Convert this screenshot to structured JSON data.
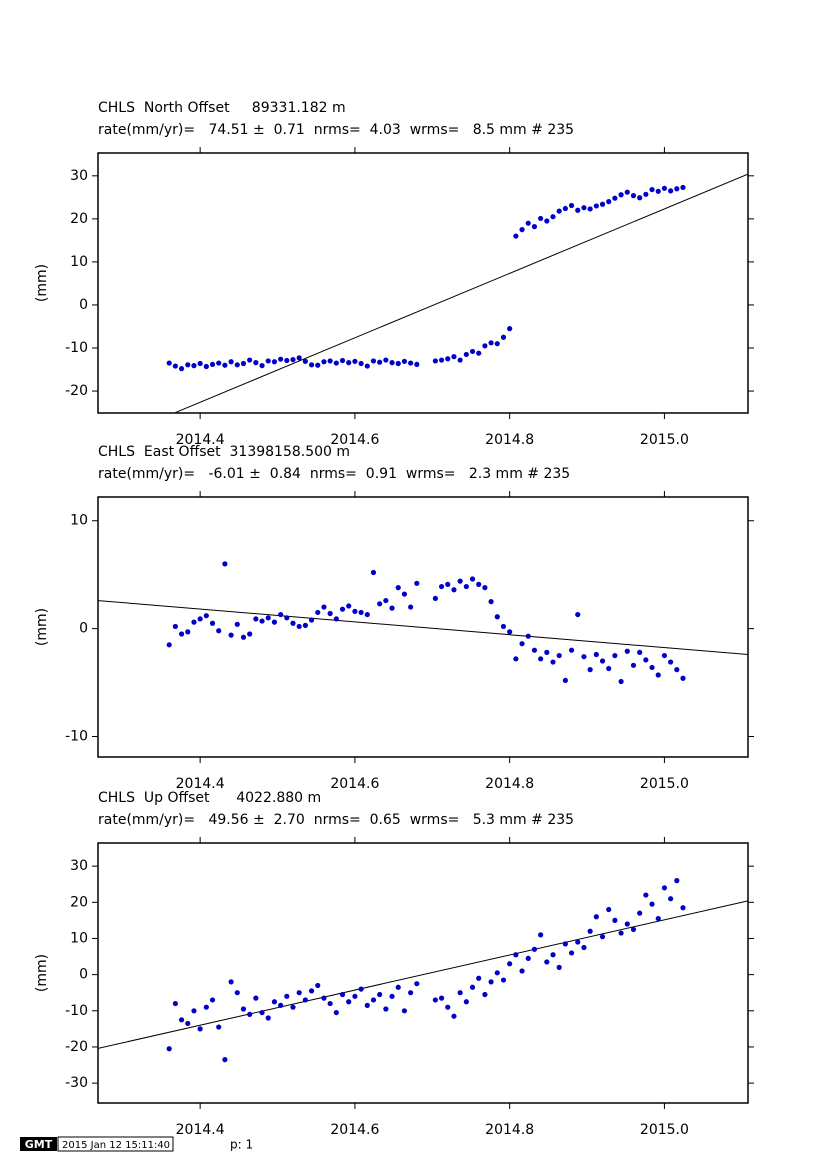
{
  "chart_data": [
    {
      "type": "scatter",
      "title": "CHLS  North Offset     89331.182 m",
      "subtitle": "rate(mm/yr)=   74.51 ±  0.71  nrms=  4.03  wrms=   8.5 mm # 235",
      "ylabel": "(mm)",
      "color": "#0000c8",
      "x": [
        2014.36,
        2014.368,
        2014.376,
        2014.384,
        2014.392,
        2014.4,
        2014.408,
        2014.416,
        2014.424,
        2014.432,
        2014.44,
        2014.448,
        2014.456,
        2014.464,
        2014.472,
        2014.48,
        2014.488,
        2014.496,
        2014.504,
        2014.512,
        2014.52,
        2014.528,
        2014.536,
        2014.544,
        2014.552,
        2014.56,
        2014.568,
        2014.576,
        2014.584,
        2014.592,
        2014.6,
        2014.608,
        2014.616,
        2014.624,
        2014.632,
        2014.64,
        2014.648,
        2014.656,
        2014.664,
        2014.672,
        2014.68,
        2014.704,
        2014.712,
        2014.72,
        2014.728,
        2014.736,
        2014.744,
        2014.752,
        2014.76,
        2014.768,
        2014.776,
        2014.784,
        2014.792,
        2014.8,
        2014.808,
        2014.816,
        2014.824,
        2014.832,
        2014.84,
        2014.848,
        2014.856,
        2014.864,
        2014.872,
        2014.88,
        2014.888,
        2014.896,
        2014.904,
        2014.912,
        2014.92,
        2014.928,
        2014.936,
        2014.944,
        2014.952,
        2014.96,
        2014.968,
        2014.976,
        2014.984,
        2014.992,
        2015.0,
        2015.008,
        2015.016,
        2015.024
      ],
      "values": [
        -13.5,
        -14.2,
        -14.8,
        -13.9,
        -14.1,
        -13.6,
        -14.3,
        -13.8,
        -13.5,
        -14.0,
        -13.2,
        -13.9,
        -13.6,
        -12.8,
        -13.4,
        -14.1,
        -13.0,
        -13.2,
        -12.6,
        -12.9,
        -12.7,
        -12.3,
        -13.1,
        -13.9,
        -14.0,
        -13.2,
        -13.0,
        -13.5,
        -12.9,
        -13.4,
        -13.1,
        -13.6,
        -14.2,
        -13.0,
        -13.3,
        -12.8,
        -13.4,
        -13.6,
        -13.1,
        -13.5,
        -13.8,
        -13.0,
        -12.8,
        -12.5,
        -12.0,
        -12.8,
        -11.5,
        -10.8,
        -11.2,
        -9.5,
        -8.8,
        -9.0,
        -7.5,
        -5.5,
        16.0,
        17.5,
        19.0,
        18.2,
        20.1,
        19.5,
        20.5,
        21.8,
        22.4,
        23.1,
        22.0,
        22.6,
        22.3,
        23.0,
        23.4,
        24.0,
        24.8,
        25.6,
        26.2,
        25.4,
        24.9,
        25.7,
        26.8,
        26.4,
        27.1,
        26.5,
        27.0,
        27.3
      ],
      "fit": {
        "x": [
          2014.368,
          2015.108
        ],
        "values": [
          -25.0,
          30.4
        ]
      },
      "xlim": [
        2014.268,
        2015.108
      ],
      "ylim": [
        -25.1,
        35.3
      ],
      "xticks": [
        2014.4,
        2014.6,
        2014.8,
        {
          "value": 2015,
          "label": "2015.0"
        }
      ],
      "yticks": [
        -20,
        -10,
        0,
        10,
        20,
        30
      ]
    },
    {
      "type": "scatter",
      "title": "CHLS  East Offset  31398158.500 m",
      "subtitle": "rate(mm/yr)=   -6.01 ±  0.84  nrms=  0.91  wrms=   2.3 mm # 235",
      "ylabel": "(mm)",
      "color": "#0000c8",
      "x": [
        2014.36,
        2014.368,
        2014.376,
        2014.384,
        2014.392,
        2014.4,
        2014.408,
        2014.416,
        2014.424,
        2014.432,
        2014.44,
        2014.448,
        2014.456,
        2014.464,
        2014.472,
        2014.48,
        2014.488,
        2014.496,
        2014.504,
        2014.512,
        2014.52,
        2014.528,
        2014.536,
        2014.544,
        2014.552,
        2014.56,
        2014.568,
        2014.576,
        2014.584,
        2014.592,
        2014.6,
        2014.608,
        2014.616,
        2014.624,
        2014.632,
        2014.64,
        2014.648,
        2014.656,
        2014.664,
        2014.672,
        2014.68,
        2014.704,
        2014.712,
        2014.72,
        2014.728,
        2014.736,
        2014.744,
        2014.752,
        2014.76,
        2014.768,
        2014.776,
        2014.784,
        2014.792,
        2014.8,
        2014.808,
        2014.816,
        2014.824,
        2014.832,
        2014.84,
        2014.848,
        2014.856,
        2014.864,
        2014.872,
        2014.88,
        2014.888,
        2014.896,
        2014.904,
        2014.912,
        2014.92,
        2014.928,
        2014.936,
        2014.944,
        2014.952,
        2014.96,
        2014.968,
        2014.976,
        2014.984,
        2014.992,
        2015.0,
        2015.008,
        2015.016,
        2015.024
      ],
      "values": [
        -1.5,
        0.2,
        -0.5,
        -0.3,
        0.6,
        0.9,
        1.2,
        0.5,
        -0.2,
        6.0,
        -0.6,
        0.4,
        -0.8,
        -0.5,
        0.9,
        0.7,
        1.0,
        0.6,
        1.3,
        1.0,
        0.5,
        0.2,
        0.3,
        0.8,
        1.5,
        2.0,
        1.4,
        0.9,
        1.8,
        2.1,
        1.6,
        1.5,
        1.3,
        5.2,
        2.3,
        2.6,
        1.9,
        3.8,
        3.2,
        2.0,
        4.2,
        2.8,
        3.9,
        4.1,
        3.6,
        4.4,
        3.9,
        4.6,
        4.1,
        3.8,
        2.5,
        1.1,
        0.2,
        -0.3,
        -2.8,
        -1.4,
        -0.7,
        -2.0,
        -2.8,
        -2.2,
        -3.1,
        -2.5,
        -4.8,
        -2.0,
        1.3,
        -2.6,
        -3.8,
        -2.4,
        -3.0,
        -3.7,
        -2.5,
        -4.9,
        -2.1,
        -3.4,
        -2.2,
        -2.9,
        -3.6,
        -4.3,
        -2.5,
        -3.1,
        -3.8,
        -4.6
      ],
      "fit": {
        "x": [
          2014.268,
          2015.108
        ],
        "values": [
          2.6,
          -2.4
        ]
      },
      "xlim": [
        2014.268,
        2015.108
      ],
      "ylim": [
        -11.9,
        12.2
      ],
      "xticks": [
        2014.4,
        2014.6,
        2014.8,
        {
          "value": 2015,
          "label": "2015.0"
        }
      ],
      "yticks": [
        -10,
        0,
        10
      ]
    },
    {
      "type": "scatter",
      "title": "CHLS  Up Offset      4022.880 m",
      "subtitle": "rate(mm/yr)=   49.56 ±  2.70  nrms=  0.65  wrms=   5.3 mm # 235",
      "ylabel": "(mm)",
      "color": "#0000c8",
      "x": [
        2014.36,
        2014.368,
        2014.376,
        2014.384,
        2014.392,
        2014.4,
        2014.408,
        2014.416,
        2014.424,
        2014.432,
        2014.44,
        2014.448,
        2014.456,
        2014.464,
        2014.472,
        2014.48,
        2014.488,
        2014.496,
        2014.504,
        2014.512,
        2014.52,
        2014.528,
        2014.536,
        2014.544,
        2014.552,
        2014.56,
        2014.568,
        2014.576,
        2014.584,
        2014.592,
        2014.6,
        2014.608,
        2014.616,
        2014.624,
        2014.632,
        2014.64,
        2014.648,
        2014.656,
        2014.664,
        2014.672,
        2014.68,
        2014.704,
        2014.712,
        2014.72,
        2014.728,
        2014.736,
        2014.744,
        2014.752,
        2014.76,
        2014.768,
        2014.776,
        2014.784,
        2014.792,
        2014.8,
        2014.808,
        2014.816,
        2014.824,
        2014.832,
        2014.84,
        2014.848,
        2014.856,
        2014.864,
        2014.872,
        2014.88,
        2014.888,
        2014.896,
        2014.904,
        2014.912,
        2014.92,
        2014.928,
        2014.936,
        2014.944,
        2014.952,
        2014.96,
        2014.968,
        2014.976,
        2014.984,
        2014.992,
        2015.0,
        2015.008,
        2015.016,
        2015.024
      ],
      "values": [
        -20.5,
        -8.0,
        -12.5,
        -13.5,
        -10.0,
        -15.0,
        -9.0,
        -7.0,
        -14.5,
        -23.5,
        -2.0,
        -5.0,
        -9.5,
        -11.0,
        -6.5,
        -10.5,
        -12.0,
        -7.5,
        -8.5,
        -6.0,
        -9.0,
        -5.0,
        -7.0,
        -4.5,
        -3.0,
        -6.5,
        -8.0,
        -10.5,
        -5.5,
        -7.5,
        -6.0,
        -4.0,
        -8.5,
        -7.0,
        -5.5,
        -9.5,
        -6.0,
        -3.5,
        -10.0,
        -5.0,
        -2.5,
        -7.0,
        -6.5,
        -9.0,
        -11.5,
        -5.0,
        -7.5,
        -3.5,
        -1.0,
        -5.5,
        -2.0,
        0.5,
        -1.5,
        3.0,
        5.5,
        1.0,
        4.5,
        7.0,
        11.0,
        3.5,
        5.5,
        2.0,
        8.5,
        6.0,
        9.0,
        7.5,
        12.0,
        16.0,
        10.5,
        18.0,
        15.0,
        11.5,
        14.0,
        12.5,
        17.0,
        22.0,
        19.5,
        15.5,
        24.0,
        21.0,
        26.0,
        18.5
      ],
      "fit": {
        "x": [
          2014.268,
          2015.108
        ],
        "values": [
          -20.4,
          20.4
        ]
      },
      "xlim": [
        2014.268,
        2015.108
      ],
      "ylim": [
        -35.5,
        36.4
      ],
      "xticks": [
        2014.4,
        2014.6,
        2014.8,
        {
          "value": 2015,
          "label": "2015.0"
        }
      ],
      "yticks": [
        -30,
        -20,
        -10,
        0,
        10,
        20,
        30
      ]
    }
  ],
  "footer": {
    "logo": "GMT",
    "timestamp": "2015 Jan 12 15:11:40",
    "page": "p: 1"
  }
}
